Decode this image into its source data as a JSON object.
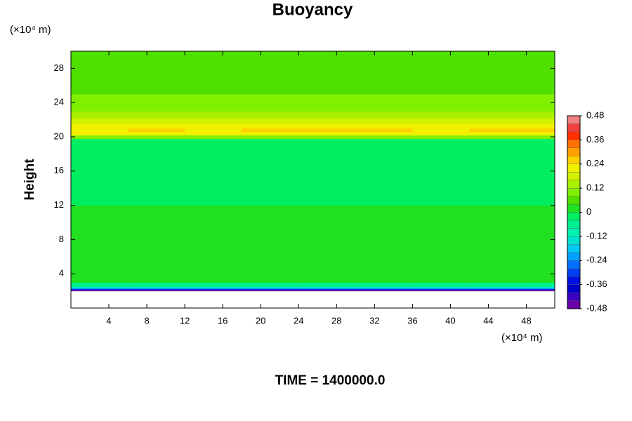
{
  "chart_data": {
    "type": "contour",
    "title": "Buoyancy",
    "ylabel": "Height",
    "x_unit": "(×10⁴ m)",
    "y_unit": "(×10⁴ m)",
    "footer": "TIME = 1400000.0",
    "xlim": [
      0,
      51
    ],
    "ylim": [
      0,
      30
    ],
    "xticks": [
      4,
      8,
      12,
      16,
      20,
      24,
      28,
      32,
      36,
      40,
      44,
      48
    ],
    "yticks": [
      4,
      8,
      12,
      16,
      20,
      24,
      28
    ],
    "x_edges": [
      0,
      6,
      12,
      18,
      24,
      30,
      36,
      42,
      48,
      51
    ],
    "y_edges": [
      2,
      2.15,
      2.3,
      2.5,
      3,
      6,
      9.5,
      12,
      16,
      19.8,
      20.2,
      20.6,
      21,
      21.6,
      22.2,
      23,
      25,
      30
    ],
    "z": [
      [
        -0.46,
        -0.46,
        -0.46,
        -0.46,
        -0.46,
        -0.46,
        -0.46,
        -0.46,
        -0.46
      ],
      [
        -0.3,
        -0.3,
        -0.3,
        -0.3,
        -0.3,
        -0.3,
        -0.3,
        -0.3,
        -0.3
      ],
      [
        -0.16,
        -0.16,
        -0.16,
        -0.16,
        -0.16,
        -0.16,
        -0.16,
        -0.16,
        -0.16
      ],
      [
        -0.05,
        -0.05,
        -0.05,
        -0.05,
        -0.05,
        -0.05,
        -0.05,
        -0.05,
        -0.05
      ],
      [
        0.02,
        0.02,
        0.02,
        0.02,
        0.02,
        0.02,
        0.02,
        0.02,
        0.02
      ],
      [
        0.02,
        0.02,
        0.02,
        0.02,
        0.02,
        0.02,
        0.02,
        0.02,
        0.02
      ],
      [
        0.01,
        0.01,
        0.01,
        0.01,
        0.01,
        0.01,
        0.01,
        0.01,
        0.01
      ],
      [
        -0.02,
        -0.02,
        -0.02,
        -0.02,
        -0.02,
        -0.02,
        -0.02,
        -0.02,
        -0.02
      ],
      [
        -0.02,
        -0.02,
        -0.01,
        -0.02,
        -0.02,
        -0.02,
        -0.01,
        -0.02,
        -0.02
      ],
      [
        0.1,
        0.1,
        0.1,
        0.1,
        0.1,
        0.1,
        0.1,
        0.1,
        0.1
      ],
      [
        0.2,
        0.21,
        0.2,
        0.21,
        0.22,
        0.21,
        0.2,
        0.21,
        0.2
      ],
      [
        0.22,
        0.25,
        0.23,
        0.24,
        0.27,
        0.25,
        0.22,
        0.25,
        0.24
      ],
      [
        0.2,
        0.21,
        0.2,
        0.2,
        0.21,
        0.2,
        0.2,
        0.21,
        0.2
      ],
      [
        0.17,
        0.17,
        0.17,
        0.17,
        0.17,
        0.17,
        0.17,
        0.17,
        0.17
      ],
      [
        0.14,
        0.14,
        0.14,
        0.14,
        0.14,
        0.14,
        0.14,
        0.14,
        0.14
      ],
      [
        0.1,
        0.1,
        0.1,
        0.1,
        0.1,
        0.1,
        0.1,
        0.1,
        0.1
      ],
      [
        0.07,
        0.07,
        0.07,
        0.07,
        0.07,
        0.07,
        0.07,
        0.07,
        0.07
      ]
    ],
    "levels": [
      -0.48,
      -0.44,
      -0.4,
      -0.36,
      -0.32,
      -0.28,
      -0.24,
      -0.2,
      -0.16,
      -0.12,
      -0.08,
      -0.04,
      0,
      0.04,
      0.08,
      0.12,
      0.16,
      0.2,
      0.24,
      0.28,
      0.32,
      0.36,
      0.4,
      0.44,
      0.48
    ],
    "colors": [
      "#6a00a8",
      "#3a00c0",
      "#0000c8",
      "#0010e0",
      "#0040f0",
      "#0070ff",
      "#00a0ff",
      "#00c8f0",
      "#00e0d0",
      "#00f0b0",
      "#00f090",
      "#00ee60",
      "#20e020",
      "#50e000",
      "#80f000",
      "#a8f000",
      "#d0f000",
      "#f0f000",
      "#ffd000",
      "#ffa000",
      "#ff7000",
      "#ff3000",
      "#f04040",
      "#f08080"
    ],
    "cticks": [
      -0.48,
      -0.36,
      -0.24,
      -0.12,
      0,
      0.12,
      0.24,
      0.36,
      0.48
    ]
  }
}
